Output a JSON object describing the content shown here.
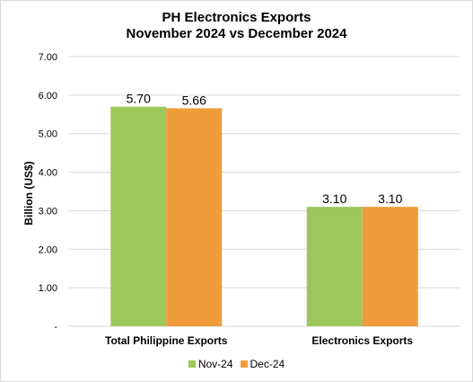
{
  "chart_data": {
    "type": "bar",
    "title": "PH Electronics Exports",
    "subtitle": "November 2024 vs December 2024",
    "xlabel": "",
    "ylabel": "Billion (US$)",
    "ylim": [
      0,
      7
    ],
    "yticks": [
      "-",
      "1.00",
      "2.00",
      "3.00",
      "4.00",
      "5.00",
      "6.00",
      "7.00"
    ],
    "grid": true,
    "legend_position": "bottom",
    "categories": [
      "Total Philippine Exports",
      "Electronics Exports"
    ],
    "series": [
      {
        "name": "Nov-24",
        "values": [
          5.7,
          3.1
        ],
        "labels": [
          "5.70",
          "3.10"
        ],
        "color": "#9dc75a"
      },
      {
        "name": "Dec-24",
        "values": [
          5.66,
          3.1
        ],
        "labels": [
          "5.66",
          "3.10"
        ],
        "color": "#f09b3c"
      }
    ]
  }
}
